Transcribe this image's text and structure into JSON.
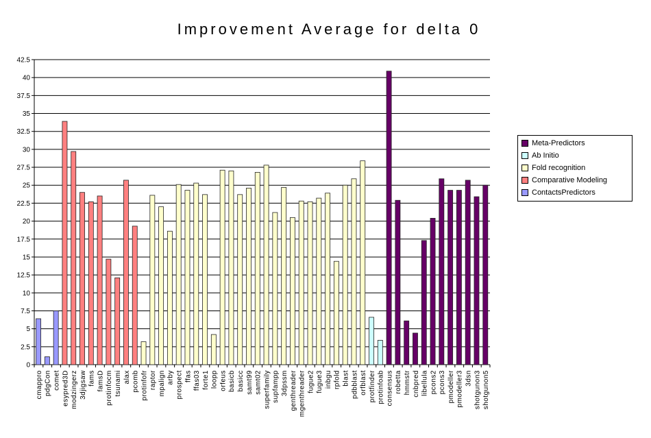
{
  "chart_data": {
    "type": "bar",
    "title": "Improvement Average for delta 0",
    "xlabel": "",
    "ylabel": "",
    "ylim": [
      0,
      42.5
    ],
    "ytick_step": 2.5,
    "grid": true,
    "legend_placement": "right",
    "categories": [
      "cmappro",
      "pdgCon",
      "comet",
      "esypred3D",
      "modzingerz",
      "3djigsaw",
      "fams",
      "famsD",
      "protinfocm",
      "tsunami",
      "alax",
      "pcomb",
      "protinfofr",
      "raptor",
      "mpalign",
      "arby",
      "prospect",
      "ffas",
      "ffas03",
      "forte1",
      "loopp",
      "orfeus",
      "basicb",
      "basicc",
      "samt99",
      "samt02",
      "superfamily",
      "supfampp",
      "3dpssm",
      "genthreader",
      "mgenthreader",
      "fugue2",
      "fugue3",
      "inbgu",
      "rpfold",
      "blast",
      "pdbblast",
      "orfblast",
      "protfinder",
      "protinfoab",
      "consensus",
      "robetta",
      "hmmstr",
      "cnbpred",
      "libellula",
      "pcons2",
      "pcons3",
      "pmodeller",
      "pmodeller3",
      "3dsn",
      "shotgunon3",
      "shotgunon5"
    ],
    "values": [
      6.4,
      1.1,
      7.5,
      33.9,
      29.7,
      24.0,
      22.7,
      23.5,
      14.7,
      12.1,
      25.7,
      19.3,
      3.2,
      23.6,
      22.0,
      18.6,
      25.1,
      24.3,
      25.3,
      23.7,
      4.2,
      27.1,
      27.0,
      23.7,
      24.6,
      26.8,
      27.8,
      21.2,
      24.7,
      20.5,
      22.8,
      22.7,
      23.2,
      23.9,
      14.4,
      25.0,
      25.9,
      28.4,
      6.6,
      3.4,
      40.9,
      22.9,
      6.1,
      4.4,
      17.3,
      20.4,
      25.9,
      24.3,
      24.3,
      25.7,
      23.4,
      25.0
    ],
    "groups": [
      0,
      0,
      0,
      1,
      1,
      1,
      1,
      1,
      1,
      1,
      1,
      1,
      2,
      2,
      2,
      2,
      2,
      2,
      2,
      2,
      2,
      2,
      2,
      2,
      2,
      2,
      2,
      2,
      2,
      2,
      2,
      2,
      2,
      2,
      2,
      2,
      2,
      2,
      3,
      3,
      4,
      4,
      4,
      4,
      4,
      4,
      4,
      4,
      4,
      4,
      4,
      4
    ],
    "series": [
      {
        "name": "ContactsPredictors",
        "color": "#9999FF"
      },
      {
        "name": "Comparative Modeling",
        "color": "#FF8080"
      },
      {
        "name": "Fold recognition",
        "color": "#FFFFCC"
      },
      {
        "name": "Ab Initio",
        "color": "#CCFFFF"
      },
      {
        "name": "Meta-Predictors",
        "color": "#660066"
      }
    ],
    "legend_order": [
      4,
      3,
      2,
      1,
      0
    ]
  }
}
